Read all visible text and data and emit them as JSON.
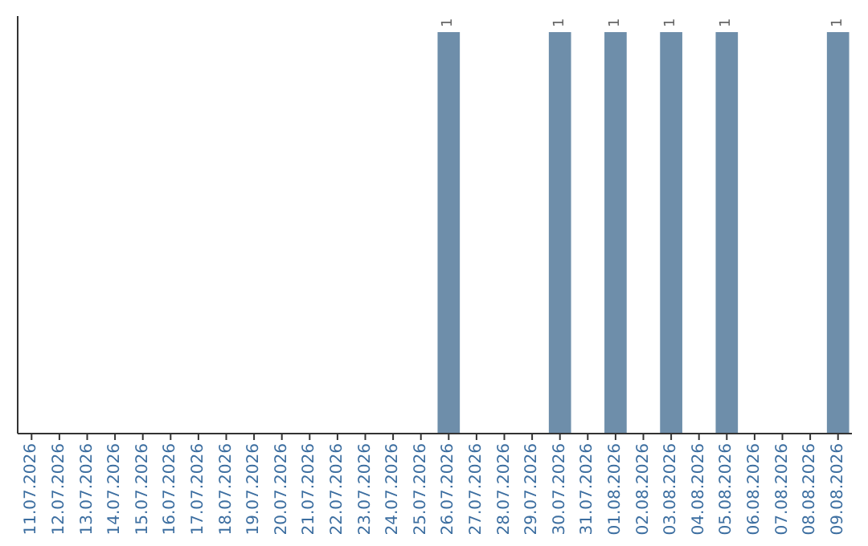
{
  "chart_data": {
    "type": "bar",
    "categories": [
      "11.07.2026",
      "12.07.2026",
      "13.07.2026",
      "14.07.2026",
      "15.07.2026",
      "16.07.2026",
      "17.07.2026",
      "18.07.2026",
      "19.07.2026",
      "20.07.2026",
      "21.07.2026",
      "22.07.2026",
      "23.07.2026",
      "24.07.2026",
      "25.07.2026",
      "26.07.2026",
      "27.07.2026",
      "28.07.2026",
      "29.07.2026",
      "30.07.2026",
      "31.07.2026",
      "01.08.2026",
      "02.08.2026",
      "03.08.2026",
      "04.08.2026",
      "05.08.2026",
      "06.08.2026",
      "07.08.2026",
      "08.08.2026",
      "09.08.2026"
    ],
    "values": [
      null,
      null,
      null,
      null,
      null,
      null,
      null,
      null,
      null,
      null,
      null,
      null,
      null,
      null,
      null,
      1,
      null,
      null,
      null,
      1,
      null,
      1,
      null,
      1,
      null,
      1,
      null,
      null,
      null,
      1
    ],
    "color": "#6e8eaa",
    "data_labels": true,
    "tick_labels": "x"
  }
}
